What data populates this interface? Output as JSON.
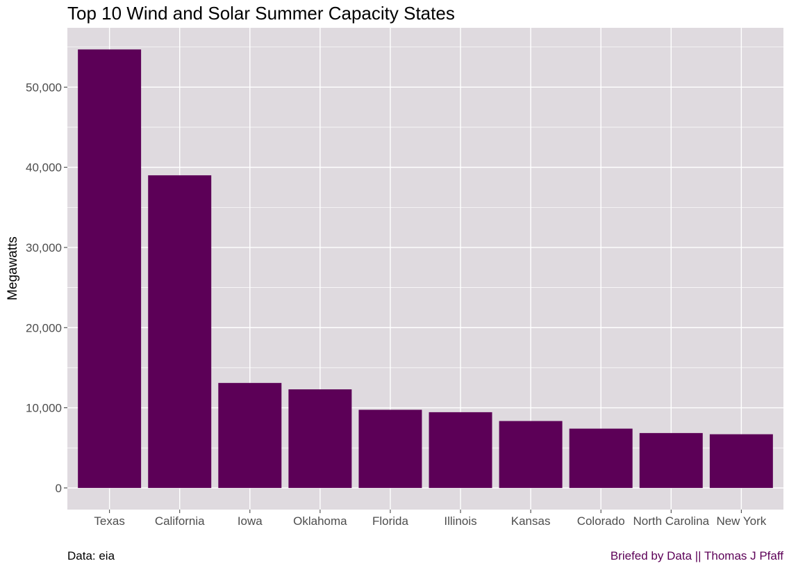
{
  "chart_data": {
    "type": "bar",
    "title": "Top 10 Wind and Solar Summer Capacity States",
    "xlabel": "",
    "ylabel": "Megawatts",
    "categories": [
      "Texas",
      "California",
      "Iowa",
      "Oklahoma",
      "Florida",
      "Illinois",
      "Kansas",
      "Colorado",
      "North Carolina",
      "New York"
    ],
    "values": [
      54700,
      39000,
      13100,
      12300,
      9750,
      9450,
      8350,
      7400,
      6850,
      6700
    ],
    "ylim": [
      -2700,
      57400
    ],
    "y_ticks": [
      0,
      10000,
      20000,
      30000,
      40000,
      50000
    ],
    "y_tick_labels": [
      "0",
      "10,000",
      "20,000",
      "30,000",
      "40,000",
      "50,000"
    ],
    "bar_color": "#5c0057",
    "panel_background": "#dfdadf",
    "grid_color": "#ffffff",
    "grid": true,
    "legend": "none"
  },
  "caption": {
    "left": "Data: eia",
    "right": "Briefed by Data || Thomas J Pfaff",
    "right_color": "#5c0057"
  }
}
